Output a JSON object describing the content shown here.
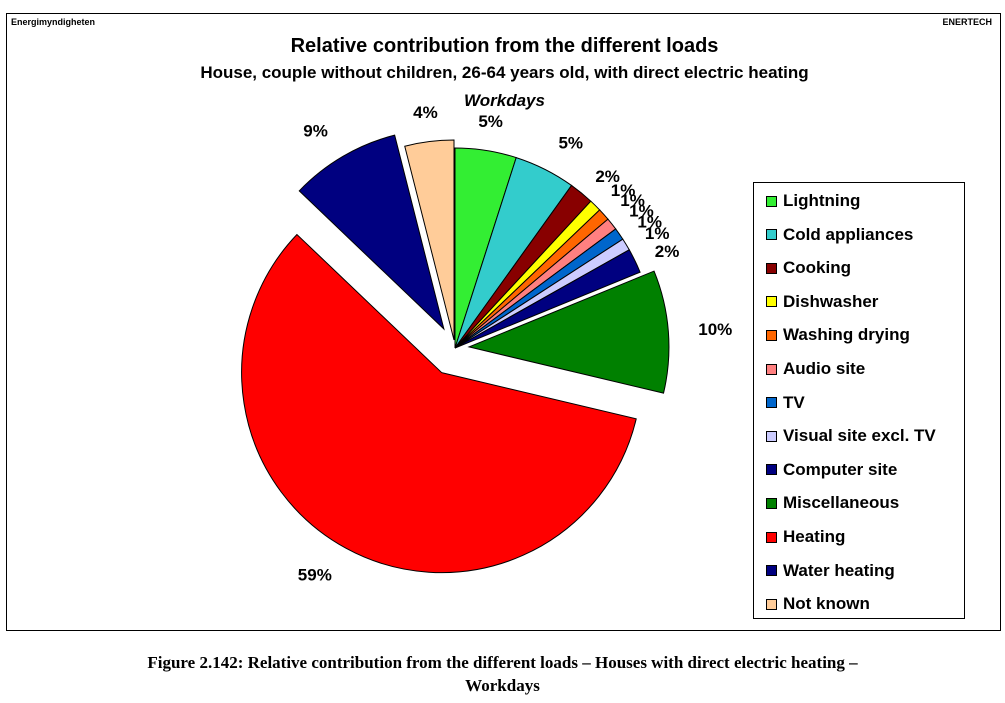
{
  "header": {
    "left": "Energimyndigheten",
    "right": "ENERTECH"
  },
  "chart_data": {
    "type": "pie",
    "title": "Relative contribution from the different loads",
    "subtitle": "House, couple without children, 26-64 years old, with direct electric heating",
    "subtitle2": "Workdays",
    "legend_position": "right",
    "slices": [
      {
        "name": "Lightning",
        "value": 5,
        "label": "5%",
        "color": "#33ee33"
      },
      {
        "name": "Cold appliances",
        "value": 5,
        "label": "5%",
        "color": "#33cccc"
      },
      {
        "name": "Cooking",
        "value": 2,
        "label": "2%",
        "color": "#880000"
      },
      {
        "name": "Dishwasher",
        "value": 1,
        "label": "1%",
        "color": "#ffff00"
      },
      {
        "name": "Washing drying",
        "value": 1,
        "label": "1%",
        "color": "#ff6600"
      },
      {
        "name": "Audio site",
        "value": 1,
        "label": "1%",
        "color": "#ff8080"
      },
      {
        "name": "TV",
        "value": 1,
        "label": "1%",
        "color": "#0066cc"
      },
      {
        "name": "Visual site excl. TV",
        "value": 1,
        "label": "1%",
        "color": "#ccccff"
      },
      {
        "name": "Computer site",
        "value": 2,
        "label": "2%",
        "color": "#000080"
      },
      {
        "name": "Miscellaneous",
        "value": 10,
        "label": "10%",
        "color": "#008000"
      },
      {
        "name": "Heating",
        "value": 59,
        "label": "59%",
        "color": "#ff0000"
      },
      {
        "name": "Water heating",
        "value": 9,
        "label": "9%",
        "color": "#000080"
      },
      {
        "name": "Not known",
        "value": 4,
        "label": "4%",
        "color": "#ffcc99"
      }
    ]
  },
  "caption": {
    "line1": "Figure 2.142: Relative contribution from the different loads – Houses with direct electric heating –",
    "line2": "Workdays"
  }
}
